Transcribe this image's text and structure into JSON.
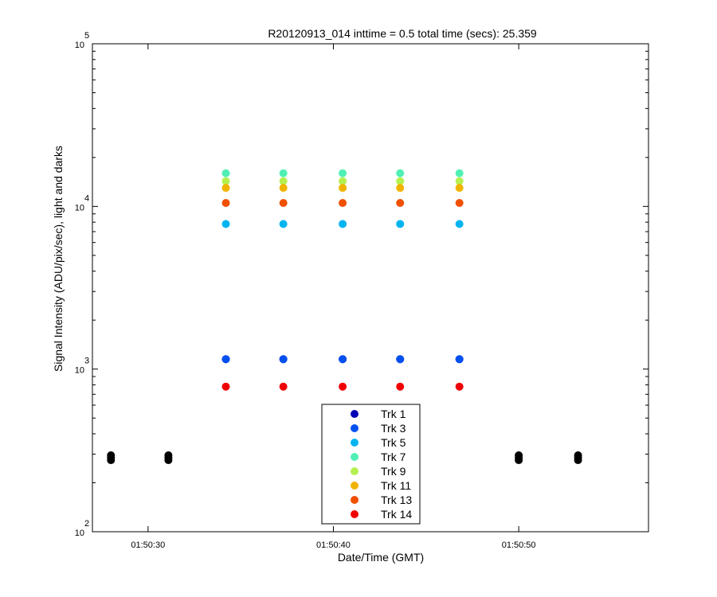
{
  "chart_data": {
    "type": "scatter",
    "title": "R20120913_014 inttime = 0.5 total time (secs): 25.359",
    "xlabel": "Date/Time (GMT)",
    "ylabel": "Signal Intensity (ADU/pix/sec), light and darks",
    "y_scale": "log",
    "ylim": [
      100,
      100000
    ],
    "xlim": [
      "01:50:27",
      "01:50:57"
    ],
    "x_ticks": [
      "01:50:30",
      "01:50:40",
      "01:50:50"
    ],
    "y_ticks": [
      {
        "base": "10",
        "exp": "2"
      },
      {
        "base": "10",
        "exp": "3"
      },
      {
        "base": "10",
        "exp": "4"
      },
      {
        "base": "10",
        "exp": "5"
      }
    ],
    "grid": false,
    "legend_position": "bottom-center",
    "series": [
      {
        "name": "Trk 1",
        "color": "#0000b4",
        "x": [
          "01:50:34.2",
          "01:50:37.3",
          "01:50:40.5",
          "01:50:43.6",
          "01:50:46.8"
        ],
        "y": [
          1150,
          1150,
          1150,
          1150,
          1150
        ]
      },
      {
        "name": "Trk 3",
        "color": "#0050f0",
        "x": [
          "01:50:34.2",
          "01:50:37.3",
          "01:50:40.5",
          "01:50:43.6",
          "01:50:46.8"
        ],
        "y": [
          1150,
          1150,
          1150,
          1150,
          1150
        ]
      },
      {
        "name": "Trk 5",
        "color": "#00b4f0",
        "x": [
          "01:50:34.2",
          "01:50:37.3",
          "01:50:40.5",
          "01:50:43.6",
          "01:50:46.8"
        ],
        "y": [
          7800,
          7800,
          7800,
          7800,
          7800
        ]
      },
      {
        "name": "Trk 7",
        "color": "#50f0b4",
        "x": [
          "01:50:34.2",
          "01:50:37.3",
          "01:50:40.5",
          "01:50:43.6",
          "01:50:46.8"
        ],
        "y": [
          16000,
          16000,
          16000,
          16000,
          16000
        ]
      },
      {
        "name": "Trk 9",
        "color": "#b4f050",
        "x": [
          "01:50:34.2",
          "01:50:37.3",
          "01:50:40.5",
          "01:50:43.6",
          "01:50:46.8"
        ],
        "y": [
          14300,
          14300,
          14300,
          14300,
          14300
        ]
      },
      {
        "name": "Trk 11",
        "color": "#f0b400",
        "x": [
          "01:50:34.2",
          "01:50:37.3",
          "01:50:40.5",
          "01:50:43.6",
          "01:50:46.8"
        ],
        "y": [
          13000,
          13000,
          13000,
          13000,
          13000
        ]
      },
      {
        "name": "Trk 13",
        "color": "#f05000",
        "x": [
          "01:50:34.2",
          "01:50:37.3",
          "01:50:40.5",
          "01:50:43.6",
          "01:50:46.8"
        ],
        "y": [
          10500,
          10500,
          10500,
          10500,
          10500
        ]
      },
      {
        "name": "Trk 14",
        "color": "#f00000",
        "x": [
          "01:50:34.2",
          "01:50:37.3",
          "01:50:40.5",
          "01:50:43.6",
          "01:50:46.8"
        ],
        "y": [
          780,
          780,
          780,
          780,
          780
        ]
      }
    ],
    "dark_points": {
      "color": "#000000",
      "x": [
        "01:50:28.0",
        "01:50:31.1",
        "01:50:50.0",
        "01:50:53.2"
      ],
      "y": [
        285,
        285,
        285,
        285
      ]
    }
  }
}
